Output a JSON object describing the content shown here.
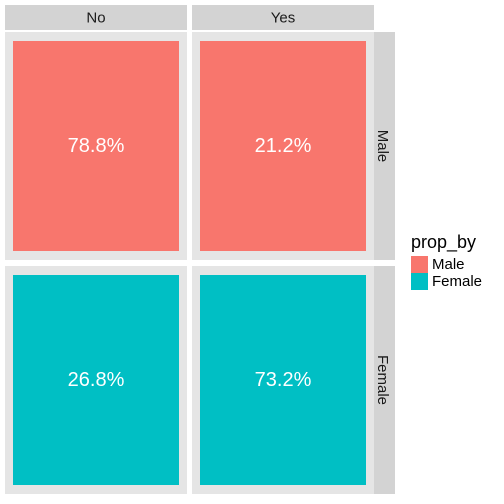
{
  "chart_data": {
    "type": "heatmap",
    "col_facets": [
      "No",
      "Yes"
    ],
    "row_facets": [
      "Male",
      "Female"
    ],
    "cells": [
      {
        "row": "Male",
        "col": "No",
        "value": 78.8,
        "label": "78.8%",
        "fill": "Male"
      },
      {
        "row": "Male",
        "col": "Yes",
        "value": 21.2,
        "label": "21.2%",
        "fill": "Male"
      },
      {
        "row": "Female",
        "col": "No",
        "value": 26.8,
        "label": "26.8%",
        "fill": "Female"
      },
      {
        "row": "Female",
        "col": "Yes",
        "value": 73.2,
        "label": "73.2%",
        "fill": "Female"
      }
    ],
    "legend": {
      "title": "prop_by",
      "position": "right",
      "entries": [
        {
          "name": "Male",
          "color": "#F8766D"
        },
        {
          "name": "Female",
          "color": "#00BFC4"
        }
      ]
    },
    "colors": {
      "panel_background": "#E5E5E5",
      "strip_background": "#D3D3D3",
      "cell_label_text": "#FFFFFF"
    }
  }
}
